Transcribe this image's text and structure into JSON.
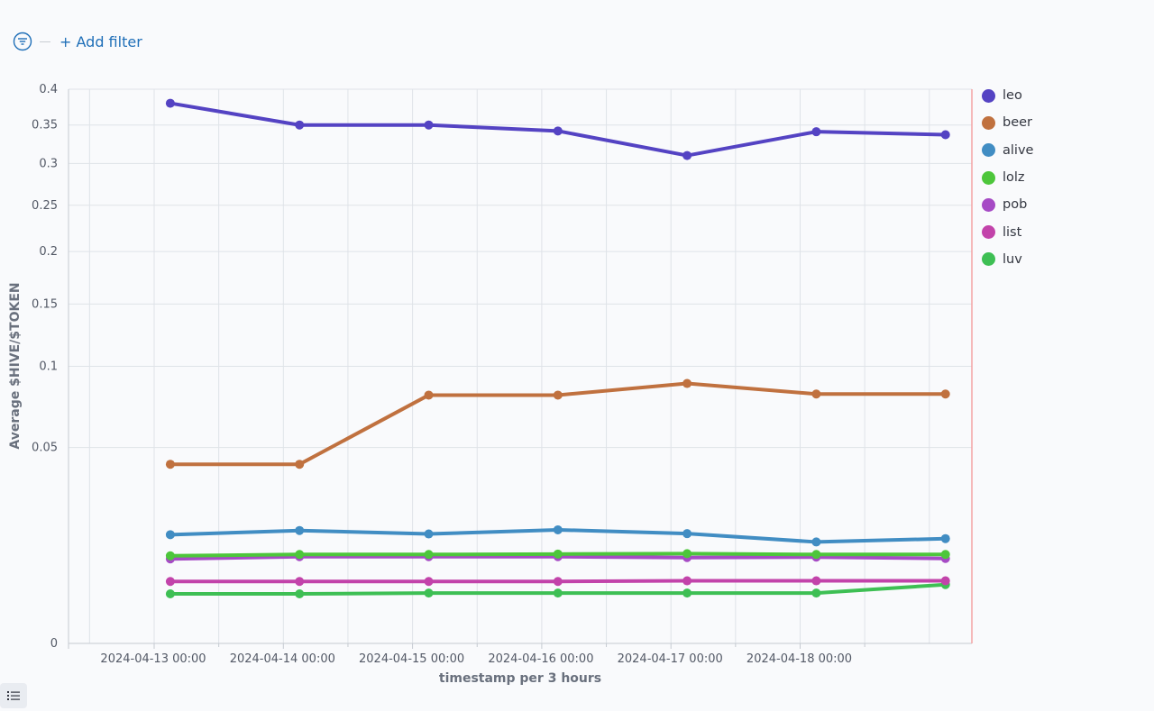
{
  "toolbar": {
    "filter_icon": "filter-icon",
    "add_filter_label": "+ Add filter"
  },
  "bottom": {
    "list_icon": "list-icon"
  },
  "colors": {
    "leo": "#5443c3",
    "beer": "#c0713f",
    "alive": "#418dc3",
    "lolz": "#4dc63b",
    "pob": "#a64bc5",
    "list": "#c243aa",
    "luv": "#3ebf54",
    "accent": "#1f6fb8",
    "marker": "#f4a3a3"
  },
  "chart_data": {
    "type": "line",
    "title": "",
    "xlabel": "timestamp per 3 hours",
    "ylabel": "Average $HIVE/$TOKEN",
    "y_scale": "sqrt",
    "ylim": [
      0,
      0.4
    ],
    "y_ticks": [
      0,
      0.05,
      0.1,
      0.15,
      0.2,
      0.25,
      0.3,
      0.35,
      0.4
    ],
    "y_tick_labels": [
      "0",
      "0.05",
      "0.1",
      "0.15",
      "0.2",
      "0.25",
      "0.3",
      "0.35",
      "0.4"
    ],
    "x_tick_labels": [
      "2024-04-13 00:00",
      "2024-04-14 00:00",
      "2024-04-15 00:00",
      "2024-04-16 00:00",
      "2024-04-17 00:00",
      "2024-04-18 00:00"
    ],
    "x": [
      "2024-04-13 03:00",
      "2024-04-14 03:00",
      "2024-04-15 03:00",
      "2024-04-16 03:00",
      "2024-04-17 03:00",
      "2024-04-18 03:00",
      "2024-04-19 03:00"
    ],
    "grid": true,
    "legend_position": "right",
    "series": [
      {
        "name": "leo",
        "values": [
          0.38,
          0.35,
          0.35,
          0.342,
          0.31,
          0.341,
          0.337
        ]
      },
      {
        "name": "beer",
        "values": [
          0.0418,
          0.0418,
          0.0803,
          0.0803,
          0.088,
          0.081,
          0.081
        ]
      },
      {
        "name": "alive",
        "values": [
          0.0154,
          0.0166,
          0.0156,
          0.0168,
          0.0157,
          0.0134,
          0.0143
        ]
      },
      {
        "name": "lolz",
        "values": [
          0.01,
          0.0103,
          0.0103,
          0.0104,
          0.0105,
          0.0103,
          0.0103
        ]
      },
      {
        "name": "pob",
        "values": [
          0.0093,
          0.0098,
          0.0098,
          0.0098,
          0.0096,
          0.0097,
          0.0094
        ]
      },
      {
        "name": "list",
        "values": [
          0.005,
          0.005,
          0.005,
          0.005,
          0.0051,
          0.0051,
          0.0051
        ]
      },
      {
        "name": "luv",
        "values": [
          0.0032,
          0.0032,
          0.0033,
          0.0033,
          0.0033,
          0.0033,
          0.0045
        ]
      }
    ]
  }
}
